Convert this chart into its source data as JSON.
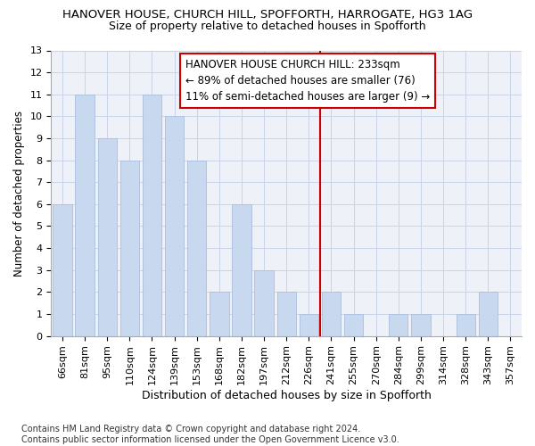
{
  "title1": "HANOVER HOUSE, CHURCH HILL, SPOFFORTH, HARROGATE, HG3 1AG",
  "title2": "Size of property relative to detached houses in Spofforth",
  "xlabel": "Distribution of detached houses by size in Spofforth",
  "ylabel": "Number of detached properties",
  "categories": [
    "66sqm",
    "81sqm",
    "95sqm",
    "110sqm",
    "124sqm",
    "139sqm",
    "153sqm",
    "168sqm",
    "182sqm",
    "197sqm",
    "212sqm",
    "226sqm",
    "241sqm",
    "255sqm",
    "270sqm",
    "284sqm",
    "299sqm",
    "314sqm",
    "328sqm",
    "343sqm",
    "357sqm"
  ],
  "values": [
    6,
    11,
    9,
    8,
    11,
    10,
    8,
    2,
    6,
    3,
    2,
    1,
    2,
    1,
    0,
    1,
    1,
    0,
    1,
    2,
    0
  ],
  "bar_color": "#c8d8ef",
  "bar_edge_color": "#a8c0dc",
  "vline_x": 11.5,
  "vline_color": "#cc0000",
  "annotation_text": "HANOVER HOUSE CHURCH HILL: 233sqm\n← 89% of detached houses are smaller (76)\n11% of semi-detached houses are larger (9) →",
  "annotation_box_color": "#ffffff",
  "annotation_box_edge_color": "#cc0000",
  "ylim": [
    0,
    13
  ],
  "yticks": [
    0,
    1,
    2,
    3,
    4,
    5,
    6,
    7,
    8,
    9,
    10,
    11,
    12,
    13
  ],
  "bg_color": "#eef2f8",
  "grid_color": "#c8d4e8",
  "footnote": "Contains HM Land Registry data © Crown copyright and database right 2024.\nContains public sector information licensed under the Open Government Licence v3.0.",
  "title1_fontsize": 9.5,
  "title2_fontsize": 9,
  "xlabel_fontsize": 9,
  "ylabel_fontsize": 8.5,
  "tick_fontsize": 8,
  "annotation_fontsize": 8.5,
  "footnote_fontsize": 7
}
